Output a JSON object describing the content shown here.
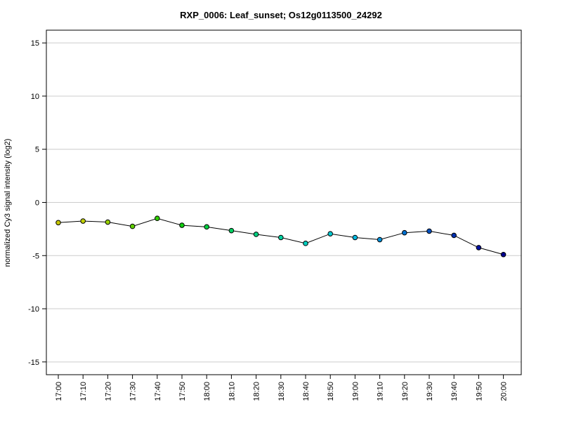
{
  "chart_data": {
    "type": "line",
    "title": "RXP_0006: Leaf_sunset; Os12g0113500_24292",
    "xlabel": "",
    "ylabel": "normalized Cy3 signal intensity (log2)",
    "categories": [
      "17:00",
      "17:10",
      "17:20",
      "17:30",
      "17:40",
      "17:50",
      "18:00",
      "18:10",
      "18:20",
      "18:30",
      "18:40",
      "18:50",
      "19:00",
      "19:10",
      "19:20",
      "19:30",
      "19:40",
      "19:50",
      "20:00"
    ],
    "series": [
      {
        "values": [
          -1.9,
          -1.75,
          -1.85,
          -2.25,
          -1.5,
          -2.15,
          -2.3,
          -2.65,
          -3.0,
          -3.3,
          -3.85,
          -2.95,
          -3.3,
          -3.5,
          -2.85,
          -2.7,
          -3.1,
          -4.25,
          -4.9
        ],
        "point_colors": [
          "#c8c800",
          "#c0d000",
          "#98d000",
          "#60d000",
          "#30d000",
          "#10d010",
          "#00d040",
          "#00d060",
          "#00d080",
          "#00d0a0",
          "#00d0c0",
          "#00c8d0",
          "#00b8e0",
          "#0090d8",
          "#0070d0",
          "#0050c0",
          "#0030b0",
          "#0010a0",
          "#000090"
        ]
      }
    ],
    "ylim": [
      -16.2,
      16.2
    ],
    "yticks": [
      -15,
      -10,
      -5,
      0,
      5,
      10,
      15
    ],
    "grid": "horizontal",
    "line_color": "#000000"
  }
}
